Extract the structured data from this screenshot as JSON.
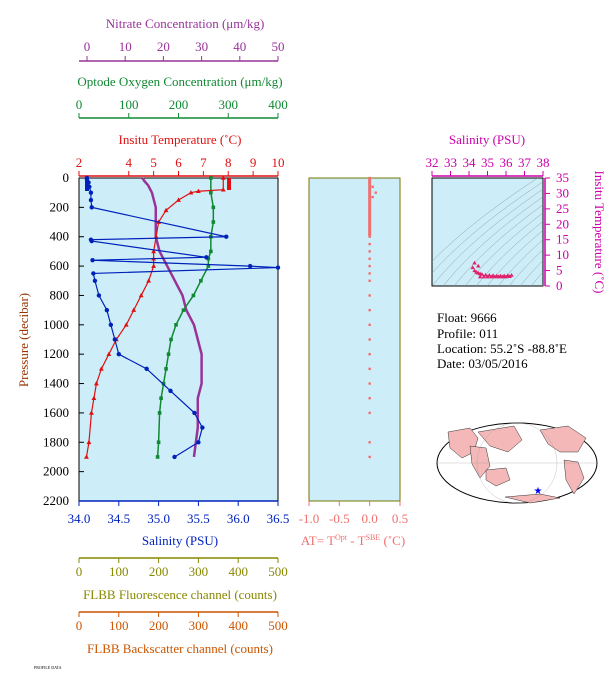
{
  "colors": {
    "nitrate": "#993399",
    "oxygen": "#118833",
    "temperature": "#e01010",
    "salinity": "#0022bb",
    "delta_t": "#f07070",
    "fluorescence": "#888800",
    "backscatter": "#cc5500",
    "panel_bg": "#cdeef8",
    "ts_axis": "#cc00aa"
  },
  "axes": {
    "nitrate": {
      "label": "Nitrate Concentration (μm/kg)",
      "ticks": [
        "0",
        "10",
        "20",
        "30",
        "40",
        "50"
      ]
    },
    "oxygen": {
      "label": "Optode Oxygen Concentration (μm/kg)",
      "ticks": [
        "0",
        "100",
        "200",
        "300",
        "400"
      ]
    },
    "temperature": {
      "label": "Insitu Temperature (˚C)",
      "ticks": [
        "2",
        "4",
        "5",
        "6",
        "7",
        "8",
        "9",
        "10"
      ]
    },
    "salinity": {
      "label": "Salinity (PSU)",
      "ticks": [
        "34.0",
        "34.5",
        "35.0",
        "35.5",
        "36.0",
        "36.5"
      ]
    },
    "pressure": {
      "label": "Pressure (decibar)",
      "ticks": [
        "0",
        "200",
        "400",
        "600",
        "800",
        "1000",
        "1200",
        "1400",
        "1600",
        "1800",
        "2000",
        "2200"
      ]
    },
    "delta_t": {
      "label_pre": "AT= T",
      "sup1": "Opt",
      "label_mid": " - T",
      "sup2": "SBE",
      "label_post": " (˚C)",
      "ticks": [
        "-1.0",
        "-0.5",
        "0.0",
        "0.5"
      ]
    },
    "fluorescence": {
      "label": "FLBB Fluorescence channel (counts)",
      "ticks": [
        "0",
        "100",
        "200",
        "300",
        "400",
        "500"
      ]
    },
    "backscatter": {
      "label": "FLBB Backscatter channel (counts)",
      "ticks": [
        "0",
        "100",
        "200",
        "300",
        "400",
        "500"
      ]
    },
    "ts_salinity": {
      "label": "Salinity (PSU)",
      "ticks": [
        "32",
        "33",
        "34",
        "35",
        "36",
        "37",
        "38"
      ]
    },
    "ts_temperature": {
      "label": "Insitu Temperature (˚C)",
      "ticks": [
        "0",
        "5",
        "10",
        "15",
        "20",
        "25",
        "30",
        "35"
      ]
    }
  },
  "info": {
    "float": "Float:  9666",
    "profile": "Profile:  011",
    "location": "Location:  55.2˚S  -88.8˚E",
    "date": "Date:  03/05/2016"
  },
  "footer": "PROFILE DATA",
  "chart_data": [
    {
      "type": "line",
      "name": "Salinity profile",
      "x": [
        34.1,
        34.1,
        34.12,
        34.13,
        34.15,
        34.15,
        34.16,
        35.85,
        34.15,
        34.16,
        35.6,
        34.17,
        36.15,
        36.5,
        34.18,
        34.2,
        34.25,
        34.35,
        34.4,
        34.45,
        34.5,
        34.85,
        35.15,
        35.45,
        35.55,
        35.5,
        35.2
      ],
      "y": [
        0,
        10,
        30,
        60,
        100,
        150,
        200,
        400,
        420,
        430,
        540,
        560,
        600,
        610,
        650,
        700,
        800,
        900,
        1000,
        1100,
        1200,
        1300,
        1450,
        1600,
        1700,
        1800,
        1900
      ]
    },
    {
      "type": "line",
      "name": "Temperature profile",
      "x": [
        7.8,
        7.8,
        6.8,
        6.5,
        6.0,
        5.5,
        5.2,
        5.1,
        5.0,
        5.0,
        5.0,
        4.8,
        4.5,
        4.2,
        3.9,
        3.5,
        3.2,
        2.9,
        2.7,
        2.6,
        2.5,
        2.4,
        2.3
      ],
      "y": [
        0,
        80,
        90,
        100,
        150,
        220,
        300,
        400,
        500,
        550,
        600,
        700,
        800,
        900,
        1000,
        1100,
        1200,
        1300,
        1400,
        1500,
        1600,
        1800,
        1900
      ]
    },
    {
      "type": "line",
      "name": "Oxygen profile",
      "x": [
        265,
        265,
        270,
        270,
        265,
        265,
        260,
        260,
        245,
        230,
        210,
        195,
        185,
        180,
        175,
        170,
        165,
        162,
        160,
        158
      ],
      "y": [
        0,
        100,
        200,
        300,
        400,
        500,
        550,
        600,
        700,
        800,
        900,
        1000,
        1100,
        1200,
        1300,
        1400,
        1500,
        1600,
        1800,
        1900
      ]
    },
    {
      "type": "line",
      "name": "Nitrate profile",
      "x": [
        14.5,
        15,
        16,
        17,
        18,
        18,
        18,
        19,
        21,
        23,
        25,
        26,
        28,
        29,
        30,
        30,
        30,
        29,
        29,
        28
      ],
      "y": [
        0,
        20,
        50,
        100,
        200,
        300,
        400,
        500,
        600,
        700,
        800,
        900,
        1000,
        1100,
        1200,
        1300,
        1400,
        1500,
        1700,
        1900
      ]
    },
    {
      "type": "scatter",
      "name": "Delta T",
      "x": [
        0.0,
        0.05,
        0.1,
        0.05,
        0.0,
        0.0,
        0.0,
        0.0,
        0.0,
        0.0,
        0.0,
        0.0,
        0.0,
        0.0,
        0.0,
        0.0,
        0.0,
        0.0,
        0.0,
        0.0,
        0.0,
        0.0,
        0.0,
        0.0,
        0.0,
        0.0
      ],
      "y": [
        0,
        60,
        100,
        130,
        200,
        250,
        300,
        350,
        400,
        450,
        500,
        550,
        600,
        650,
        700,
        800,
        900,
        1000,
        1100,
        1200,
        1300,
        1400,
        1500,
        1600,
        1800,
        1900
      ]
    },
    {
      "type": "scatter",
      "name": "T-S diagram",
      "x": [
        34.2,
        34.3,
        34.4,
        34.5,
        34.6,
        34.7,
        34.9,
        35.1,
        35.3,
        35.5,
        35.7,
        35.9,
        36.1,
        36.3,
        34.6,
        34.8,
        35.0,
        35.2,
        35.4,
        35.6,
        35.8,
        36.0,
        36.2,
        34.3,
        34.5
      ],
      "y": [
        6,
        5,
        4.5,
        4.2,
        4,
        3.8,
        3.6,
        3.5,
        3.4,
        3.3,
        3.3,
        3.3,
        3.4,
        3.5,
        3,
        3,
        3,
        3,
        3,
        3,
        3,
        3,
        3.1,
        7.5,
        6.5
      ]
    }
  ]
}
